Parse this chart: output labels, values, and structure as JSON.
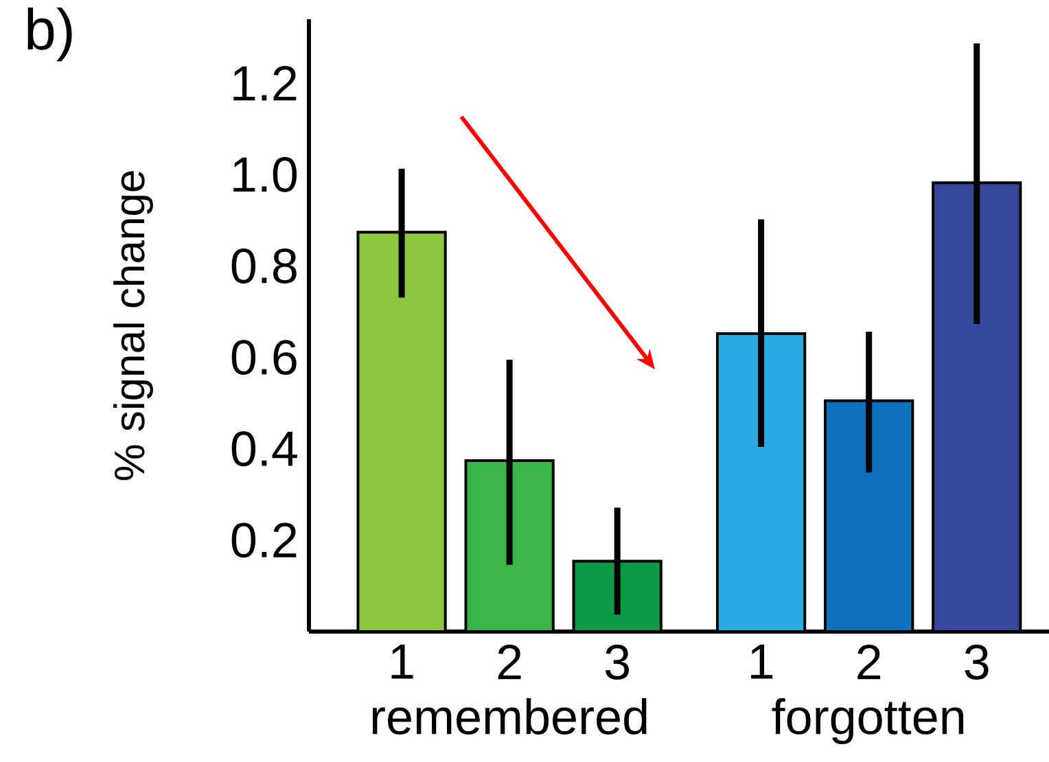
{
  "chart_data": {
    "type": "bar",
    "title": "b)",
    "ylabel": "% signal change",
    "categories": [
      "1",
      "2",
      "3",
      null,
      "1",
      "2",
      "3"
    ],
    "values": [
      0.874,
      0.374,
      0.154,
      null,
      0.652,
      0.505,
      0.982
    ],
    "errors": [
      [
        0.731,
        1.013
      ],
      [
        0.146,
        0.595
      ],
      [
        0.037,
        0.271
      ],
      null,
      [
        0.404,
        0.902
      ],
      [
        0.348,
        0.656
      ],
      [
        0.673,
        1.287
      ]
    ],
    "colors": [
      "#8dc63f",
      "#39b54a",
      "#0f9a48",
      "#ffffff",
      "#29abe2",
      "#0d72bb",
      "#36479a"
    ],
    "ylim": [
      0,
      1.34
    ],
    "yticks": [
      0.2,
      0.4,
      0.6,
      0.8,
      {
        "value": 1.0,
        "label": "1.0"
      },
      1.2
    ],
    "annotations": [
      "remembered",
      "forgotten"
    ]
  }
}
